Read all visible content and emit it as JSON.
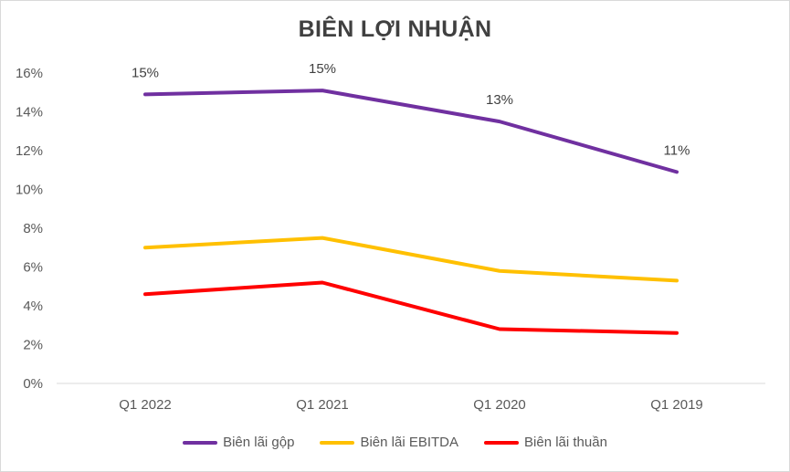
{
  "chart_data": {
    "type": "line",
    "title": "BIÊN LỢI NHUẬN",
    "categories": [
      "Q1 2022",
      "Q1 2021",
      "Q1 2020",
      "Q1 2019"
    ],
    "ylim": [
      0,
      16
    ],
    "yticks": [
      0,
      2,
      4,
      6,
      8,
      10,
      12,
      14,
      16
    ],
    "ytick_labels": [
      "0%",
      "2%",
      "4%",
      "6%",
      "8%",
      "10%",
      "12%",
      "14%",
      "16%"
    ],
    "grid": false,
    "legend_position": "bottom",
    "series": [
      {
        "name": "Biên lãi gộp",
        "color": "#7030a0",
        "values": [
          14.9,
          15.1,
          13.5,
          10.9
        ],
        "data_labels": [
          "15%",
          "15%",
          "13%",
          "11%"
        ]
      },
      {
        "name": "Biên lãi EBITDA",
        "color": "#ffc000",
        "values": [
          7.0,
          7.5,
          5.8,
          5.3
        ]
      },
      {
        "name": "Biên lãi thuần",
        "color": "#ff0000",
        "values": [
          4.6,
          5.2,
          2.8,
          2.6
        ]
      }
    ]
  }
}
